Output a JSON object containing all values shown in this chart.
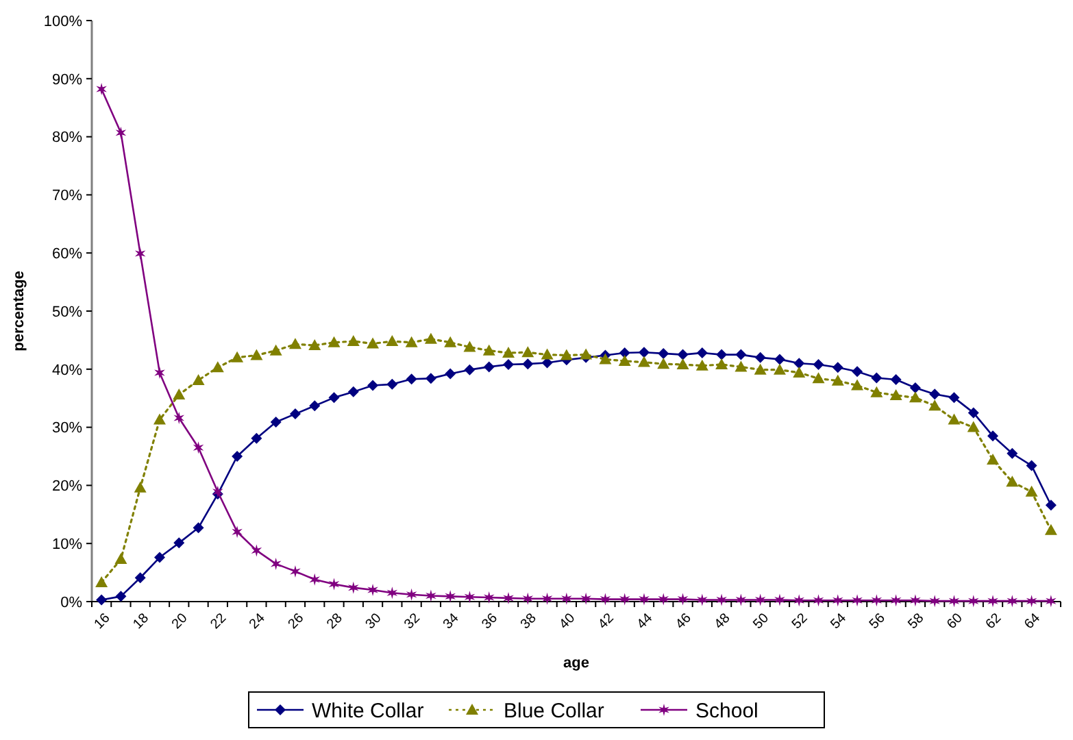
{
  "chart_data": {
    "type": "line",
    "xlabel": "age",
    "ylabel": "percentage",
    "categories": [
      "16",
      null,
      "18",
      null,
      "20",
      null,
      "22",
      null,
      "24",
      null,
      "26",
      null,
      "28",
      null,
      "30",
      null,
      "32",
      null,
      "34",
      null,
      "36",
      null,
      "38",
      null,
      "40",
      null,
      "42",
      null,
      "44",
      null,
      "46",
      null,
      "48",
      null,
      "50",
      null,
      "52",
      null,
      "54",
      null,
      "56",
      null,
      "58",
      null,
      "60",
      null,
      "62",
      null,
      "64",
      null
    ],
    "ylim": [
      0,
      100
    ],
    "yticks": [
      {
        "value": 0,
        "label": "0%"
      },
      {
        "value": 10,
        "label": "10%"
      },
      {
        "value": 20,
        "label": "20%"
      },
      {
        "value": 30,
        "label": "30%"
      },
      {
        "value": 40,
        "label": "40%"
      },
      {
        "value": 50,
        "label": "50%"
      },
      {
        "value": 60,
        "label": "60%"
      },
      {
        "value": 70,
        "label": "70%"
      },
      {
        "value": 80,
        "label": "80%"
      },
      {
        "value": 90,
        "label": "90%"
      },
      {
        "value": 100,
        "label": "100%"
      }
    ],
    "grid": false,
    "legend": "bottom",
    "series": [
      {
        "name": "White Collar",
        "color": "#000080",
        "marker": "diamond",
        "line_style": "solid",
        "values": [
          0.3,
          0.9,
          4.1,
          7.6,
          10.1,
          12.7,
          18.5,
          25.0,
          28.1,
          30.9,
          32.3,
          33.7,
          35.1,
          36.1,
          37.2,
          37.4,
          38.3,
          38.4,
          39.2,
          39.9,
          40.4,
          40.8,
          40.9,
          41.1,
          41.6,
          42.0,
          42.4,
          42.8,
          42.9,
          42.7,
          42.5,
          42.8,
          42.5,
          42.5,
          42.0,
          41.7,
          41.0,
          40.8,
          40.3,
          39.6,
          38.5,
          38.2,
          36.8,
          35.7,
          35.1,
          32.5,
          28.5,
          25.5,
          23.4,
          16.6
        ]
      },
      {
        "name": "Blue Collar",
        "color": "#808000",
        "marker": "triangle",
        "line_style": "dotted",
        "values": [
          3.3,
          7.3,
          19.6,
          31.3,
          35.6,
          38.1,
          40.3,
          42.0,
          42.4,
          43.2,
          44.3,
          44.1,
          44.6,
          44.8,
          44.4,
          44.8,
          44.6,
          45.2,
          44.6,
          43.8,
          43.2,
          42.8,
          42.9,
          42.5,
          42.4,
          42.5,
          41.7,
          41.4,
          41.2,
          40.9,
          40.8,
          40.6,
          40.8,
          40.4,
          39.9,
          39.9,
          39.4,
          38.4,
          38.0,
          37.2,
          36.0,
          35.5,
          35.1,
          33.7,
          31.3,
          30.0,
          24.4,
          20.6,
          18.9,
          12.3
        ]
      },
      {
        "name": "School",
        "color": "#800080",
        "marker": "cross",
        "line_style": "solid",
        "values": [
          88.2,
          80.7,
          59.9,
          39.4,
          31.6,
          26.5,
          18.9,
          12.0,
          8.8,
          6.5,
          5.2,
          3.8,
          3.0,
          2.4,
          2.0,
          1.5,
          1.2,
          1.0,
          0.9,
          0.8,
          0.7,
          0.6,
          0.5,
          0.5,
          0.5,
          0.5,
          0.4,
          0.4,
          0.4,
          0.4,
          0.4,
          0.3,
          0.3,
          0.3,
          0.3,
          0.3,
          0.2,
          0.2,
          0.2,
          0.2,
          0.2,
          0.2,
          0.2,
          0.1,
          0.1,
          0.1,
          0.1,
          0.1,
          0.1,
          0.1
        ]
      }
    ]
  }
}
